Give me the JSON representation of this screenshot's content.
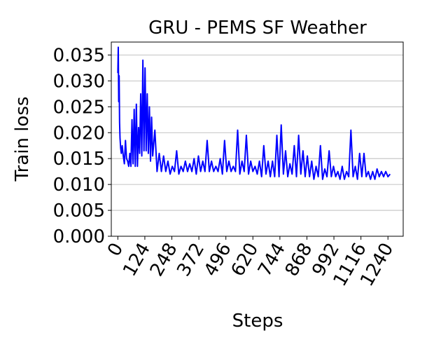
{
  "chart_data": {
    "type": "line",
    "title": "GRU - PEMS SF Weather",
    "xlabel": "Steps",
    "ylabel": "Train loss",
    "xlim": [
      -30,
      1310
    ],
    "ylim": [
      0,
      0.0375
    ],
    "xticks": [
      0,
      124,
      248,
      372,
      496,
      620,
      744,
      868,
      992,
      1116,
      1240
    ],
    "xtick_labels": [
      "0",
      "124",
      "248",
      "372",
      "496",
      "620",
      "744",
      "868",
      "992",
      "1116",
      "1240"
    ],
    "yticks": [
      0.0,
      0.005,
      0.01,
      0.015,
      0.02,
      0.025,
      0.03,
      0.035
    ],
    "ytick_labels": [
      "0.000",
      "0.005",
      "0.010",
      "0.015",
      "0.020",
      "0.025",
      "0.030",
      "0.035"
    ],
    "grid": "horizontal",
    "legend": "none",
    "series": [
      {
        "color": "#0000ff",
        "x": [
          0,
          2,
          4,
          6,
          8,
          10,
          13,
          16,
          20,
          25,
          30,
          35,
          40,
          45,
          50,
          55,
          60,
          65,
          70,
          75,
          80,
          85,
          90,
          95,
          100,
          105,
          110,
          115,
          120,
          125,
          130,
          135,
          140,
          145,
          150,
          155,
          160,
          170,
          180,
          190,
          200,
          210,
          220,
          230,
          240,
          250,
          260,
          270,
          280,
          290,
          300,
          310,
          320,
          330,
          340,
          350,
          360,
          370,
          380,
          390,
          400,
          410,
          420,
          430,
          440,
          450,
          460,
          470,
          480,
          490,
          500,
          510,
          520,
          530,
          540,
          550,
          560,
          570,
          580,
          590,
          600,
          610,
          620,
          630,
          640,
          650,
          660,
          670,
          680,
          690,
          700,
          710,
          720,
          730,
          740,
          750,
          760,
          770,
          780,
          790,
          800,
          810,
          820,
          830,
          840,
          850,
          860,
          870,
          880,
          890,
          900,
          910,
          920,
          930,
          940,
          950,
          960,
          970,
          980,
          990,
          1000,
          1010,
          1020,
          1030,
          1040,
          1050,
          1060,
          1070,
          1080,
          1090,
          1100,
          1110,
          1120,
          1130,
          1140,
          1150,
          1160,
          1170,
          1180,
          1190,
          1200,
          1210,
          1220,
          1230,
          1240,
          1250
        ],
        "y": [
          0.0315,
          0.0365,
          0.026,
          0.031,
          0.022,
          0.019,
          0.017,
          0.016,
          0.0175,
          0.0155,
          0.014,
          0.0185,
          0.015,
          0.0145,
          0.0135,
          0.016,
          0.0135,
          0.0225,
          0.014,
          0.0245,
          0.0135,
          0.0255,
          0.0135,
          0.021,
          0.016,
          0.0275,
          0.0155,
          0.034,
          0.0165,
          0.0325,
          0.0165,
          0.0275,
          0.016,
          0.025,
          0.0145,
          0.023,
          0.0155,
          0.0205,
          0.0125,
          0.016,
          0.0125,
          0.0155,
          0.0125,
          0.0145,
          0.012,
          0.0135,
          0.0125,
          0.0165,
          0.012,
          0.0135,
          0.0125,
          0.0145,
          0.0125,
          0.014,
          0.0125,
          0.015,
          0.012,
          0.0155,
          0.0125,
          0.0145,
          0.0125,
          0.0185,
          0.0125,
          0.0145,
          0.0125,
          0.0135,
          0.0125,
          0.015,
          0.012,
          0.0185,
          0.0125,
          0.0145,
          0.0125,
          0.0135,
          0.0125,
          0.0205,
          0.012,
          0.0145,
          0.0125,
          0.0195,
          0.012,
          0.0145,
          0.0125,
          0.0135,
          0.012,
          0.0145,
          0.0115,
          0.0175,
          0.012,
          0.0145,
          0.0115,
          0.0145,
          0.0115,
          0.0195,
          0.0115,
          0.0215,
          0.012,
          0.0165,
          0.0115,
          0.014,
          0.012,
          0.0175,
          0.0115,
          0.0195,
          0.012,
          0.0165,
          0.0115,
          0.0155,
          0.0115,
          0.0145,
          0.011,
          0.0135,
          0.0115,
          0.0175,
          0.011,
          0.013,
          0.0115,
          0.0165,
          0.0115,
          0.0135,
          0.0115,
          0.0125,
          0.011,
          0.0135,
          0.011,
          0.0125,
          0.0115,
          0.0205,
          0.0115,
          0.0135,
          0.011,
          0.016,
          0.0115,
          0.016,
          0.0115,
          0.0125,
          0.011,
          0.0125,
          0.011,
          0.013,
          0.0115,
          0.0125,
          0.0115,
          0.0125,
          0.0115,
          0.012
        ]
      }
    ]
  }
}
